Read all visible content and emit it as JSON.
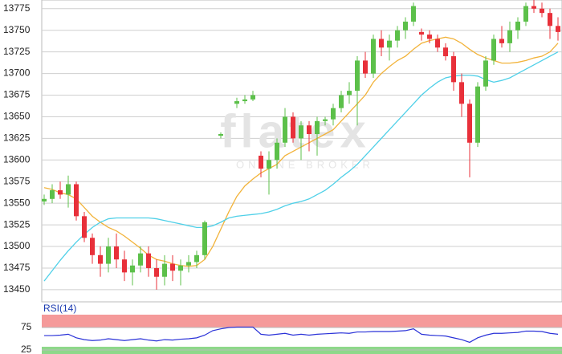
{
  "chart_data": {
    "type": "candlestick",
    "watermark": "flatex",
    "watermark_subtitle": "ONLINE BROKER",
    "ylim": [
      13436,
      13785
    ],
    "yticks": [
      13450,
      13475,
      13500,
      13525,
      13550,
      13575,
      13600,
      13625,
      13650,
      13675,
      13700,
      13725,
      13750,
      13775
    ],
    "grid": true,
    "up_color": "#5cc04a",
    "down_color": "#e8303a",
    "ohlc": [
      [
        13552,
        13560,
        13548,
        13555
      ],
      [
        13555,
        13572,
        13550,
        13565
      ],
      [
        13565,
        13575,
        13555,
        13560
      ],
      [
        13560,
        13582,
        13545,
        13572
      ],
      [
        13572,
        13575,
        13530,
        13535
      ],
      [
        13535,
        13540,
        13505,
        13510
      ],
      [
        13510,
        13515,
        13480,
        13490
      ],
      [
        13490,
        13500,
        13465,
        13480
      ],
      [
        13480,
        13510,
        13470,
        13500
      ],
      [
        13500,
        13515,
        13475,
        13485
      ],
      [
        13485,
        13495,
        13460,
        13470
      ],
      [
        13470,
        13485,
        13455,
        13478
      ],
      [
        13478,
        13500,
        13470,
        13492
      ],
      [
        13492,
        13500,
        13465,
        13475
      ],
      [
        13475,
        13485,
        13450,
        13465
      ],
      [
        13465,
        13490,
        13455,
        13480
      ],
      [
        13480,
        13490,
        13460,
        13472
      ],
      [
        13472,
        13485,
        13455,
        13478
      ],
      [
        13478,
        13490,
        13470,
        13482
      ],
      [
        13482,
        13495,
        13475,
        13490
      ],
      [
        13490,
        13530,
        13485,
        13528
      ],
      null,
      [
        13628,
        13632,
        13625,
        13630
      ],
      null,
      [
        13665,
        13672,
        13660,
        13668
      ],
      [
        13668,
        13675,
        13665,
        13670
      ],
      [
        13670,
        13680,
        13668,
        13675
      ],
      [
        13605,
        13610,
        13580,
        13590
      ],
      [
        13590,
        13610,
        13560,
        13600
      ],
      [
        13600,
        13625,
        13590,
        13620
      ],
      [
        13620,
        13660,
        13615,
        13650
      ],
      [
        13650,
        13655,
        13620,
        13625
      ],
      [
        13625,
        13645,
        13600,
        13640
      ],
      [
        13640,
        13645,
        13610,
        13630
      ],
      [
        13630,
        13650,
        13605,
        13645
      ],
      [
        13645,
        13650,
        13640,
        13647
      ],
      [
        13647,
        13665,
        13640,
        13660
      ],
      [
        13660,
        13680,
        13655,
        13675
      ],
      [
        13675,
        13690,
        13665,
        13680
      ],
      [
        13680,
        13720,
        13640,
        13715
      ],
      [
        13715,
        13725,
        13695,
        13700
      ],
      [
        13700,
        13745,
        13695,
        13740
      ],
      [
        13740,
        13750,
        13720,
        13730
      ],
      [
        13730,
        13745,
        13715,
        13738
      ],
      [
        13738,
        13755,
        13730,
        13750
      ],
      [
        13750,
        13765,
        13740,
        13760
      ],
      [
        13760,
        13782,
        13755,
        13778
      ],
      [
        13748,
        13752,
        13738,
        13745
      ],
      [
        13745,
        13750,
        13735,
        13740
      ],
      [
        13740,
        13745,
        13725,
        13730
      ],
      [
        13730,
        13735,
        13715,
        13720
      ],
      [
        13720,
        13725,
        13680,
        13690
      ],
      [
        13690,
        13700,
        13650,
        13665
      ],
      [
        13665,
        13670,
        13580,
        13620
      ],
      [
        13620,
        13690,
        13615,
        13685
      ],
      [
        13685,
        13720,
        13680,
        13715
      ],
      [
        13715,
        13745,
        13710,
        13740
      ],
      [
        13740,
        13755,
        13730,
        13735
      ],
      [
        13735,
        13760,
        13725,
        13750
      ],
      [
        13750,
        13765,
        13740,
        13760
      ],
      [
        13760,
        13782,
        13755,
        13778
      ],
      [
        13778,
        13785,
        13770,
        13775
      ],
      [
        13775,
        13782,
        13765,
        13770
      ],
      [
        13770,
        13775,
        13740,
        13755
      ],
      [
        13755,
        13765,
        13738,
        13748
      ]
    ],
    "series": [
      {
        "color": "#f2b33a",
        "values": [
          13568,
          13566,
          13562,
          13560,
          13555,
          13545,
          13535,
          13528,
          13522,
          13518,
          13512,
          13505,
          13498,
          13490,
          13485,
          13483,
          13480,
          13478,
          13477,
          13478,
          13485,
          13500,
          13520,
          13540,
          13558,
          13570,
          13578,
          13585,
          13590,
          13595,
          13605,
          13610,
          13615,
          13620,
          13625,
          13630,
          13635,
          13645,
          13655,
          13665,
          13675,
          13690,
          13700,
          13708,
          13715,
          13720,
          13728,
          13735,
          13738,
          13740,
          13742,
          13740,
          13735,
          13728,
          13722,
          13718,
          13715,
          13712,
          13712,
          13713,
          13715,
          13718,
          13720,
          13725,
          13735
        ]
      },
      {
        "color": "#4fd0e8",
        "values": [
          13460,
          13472,
          13484,
          13495,
          13505,
          13514,
          13522,
          13528,
          13532,
          13533,
          13533,
          13533,
          13533,
          13533,
          13532,
          13530,
          13528,
          13526,
          13524,
          13522,
          13522,
          13524,
          13528,
          13533,
          13535,
          13536,
          13537,
          13538,
          13540,
          13543,
          13547,
          13550,
          13552,
          13555,
          13560,
          13565,
          13572,
          13580,
          13587,
          13595,
          13605,
          13615,
          13625,
          13635,
          13645,
          13655,
          13665,
          13675,
          13683,
          13690,
          13695,
          13697,
          13698,
          13698,
          13697,
          13693,
          13690,
          13692,
          13695,
          13700,
          13705,
          13710,
          13715,
          13720,
          13725
        ]
      }
    ],
    "rsi": {
      "label": "RSI(14)",
      "color": "#2a32d8",
      "ylim": [
        16,
        100
      ],
      "yticks": [
        75,
        25
      ],
      "values": [
        57,
        57,
        58,
        60,
        52,
        48,
        46,
        47,
        50,
        48,
        46,
        48,
        50,
        47,
        45,
        48,
        47,
        49,
        50,
        52,
        58,
        68,
        72,
        75,
        76,
        76,
        76,
        60,
        58,
        60,
        62,
        58,
        60,
        58,
        60,
        61,
        62,
        63,
        62,
        65,
        65,
        66,
        66,
        66,
        67,
        68,
        72,
        60,
        58,
        57,
        56,
        52,
        48,
        42,
        52,
        58,
        62,
        62,
        63,
        64,
        67,
        67,
        66,
        62,
        60
      ]
    }
  }
}
